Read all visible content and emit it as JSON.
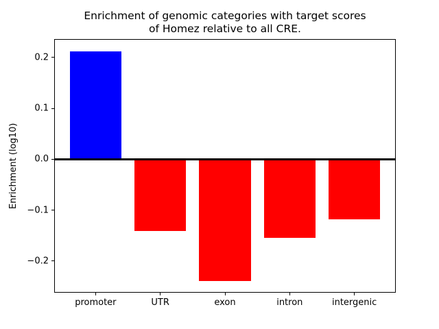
{
  "figure": {
    "title_line1": "Enrichment of genomic categories with target scores",
    "title_line2": "of Homez relative to all CRE.",
    "ylabel": "Enrichment (log10)"
  },
  "chart_data": {
    "type": "bar",
    "title": "Enrichment of genomic categories with target scores\nof Homez relative to all CRE.",
    "xlabel": "",
    "ylabel": "Enrichment (log10)",
    "categories": [
      "promoter",
      "UTR",
      "exon",
      "intron",
      "intergenic"
    ],
    "values": [
      0.212,
      -0.141,
      -0.239,
      -0.154,
      -0.118
    ],
    "bar_colors": [
      "#0000ff",
      "#ff0000",
      "#ff0000",
      "#ff0000",
      "#ff0000"
    ],
    "positive_color": "#0000ff",
    "negative_color": "#ff0000",
    "ylim": [
      -0.262,
      0.236
    ],
    "yticks": [
      0.2,
      0.1,
      0.0,
      -0.1,
      -0.2
    ],
    "ytick_labels": [
      "0.2",
      "0.1",
      "0.0",
      "−0.1",
      "−0.2"
    ],
    "bar_width_fraction": 0.8,
    "zero_line": true,
    "grid": false,
    "legend": false
  }
}
